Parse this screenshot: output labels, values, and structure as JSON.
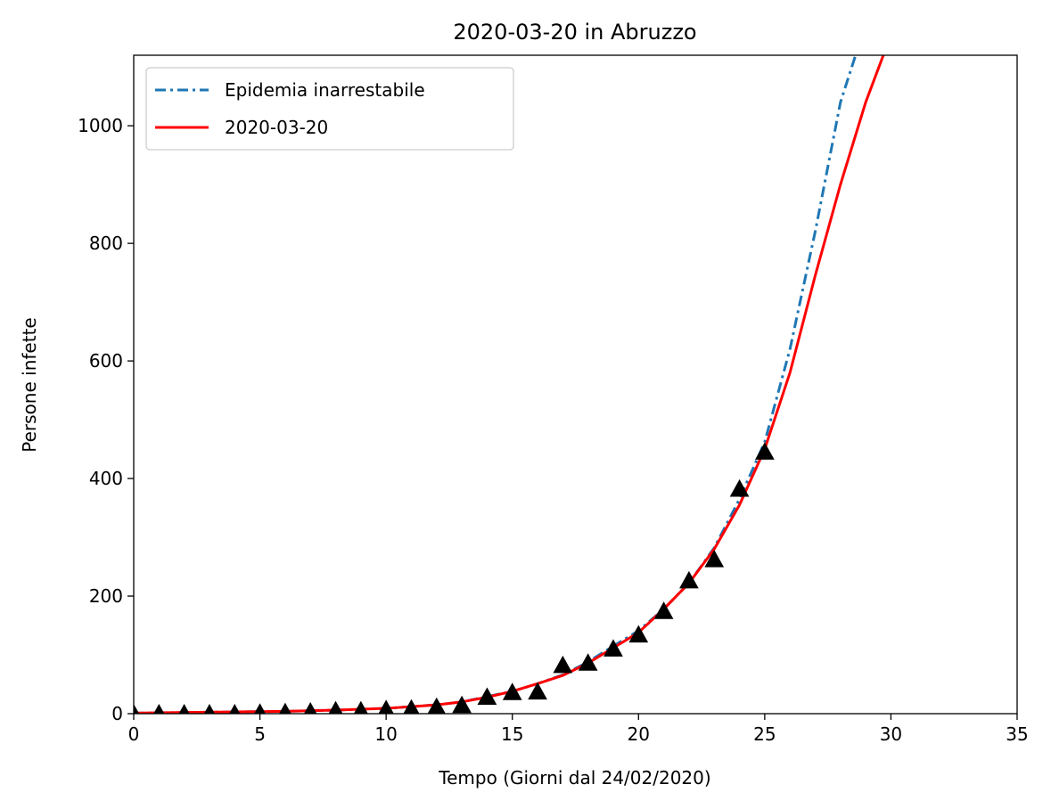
{
  "chart_data": {
    "type": "line",
    "title": "2020-03-20 in Abruzzo",
    "xlabel": "Tempo (Giorni dal 24/02/2020)",
    "ylabel": "Persone infette",
    "xlim": [
      0,
      35
    ],
    "ylim": [
      0,
      1120
    ],
    "xticks": [
      0,
      5,
      10,
      15,
      20,
      25,
      30,
      35
    ],
    "yticks": [
      0,
      200,
      400,
      600,
      800,
      1000
    ],
    "grid": false,
    "legend_position": "top-left",
    "series": [
      {
        "name": "Epidemia inarrestabile",
        "style": "dash-dot",
        "color": "#1f77b4",
        "x": [
          0,
          2,
          4,
          6,
          8,
          10,
          12,
          13,
          14,
          15,
          16,
          17,
          18,
          19,
          20,
          21,
          22,
          23,
          24,
          25,
          26,
          27,
          28,
          28.6
        ],
        "y": [
          1,
          2,
          3,
          4,
          6,
          9,
          15,
          20,
          29,
          38,
          51,
          66,
          88,
          115,
          141,
          178,
          222,
          282,
          365,
          462,
          620,
          820,
          1040,
          1120
        ]
      },
      {
        "name": "2020-03-20",
        "style": "solid",
        "color": "#ff0000",
        "x": [
          0,
          2,
          4,
          6,
          8,
          10,
          12,
          13,
          14,
          15,
          16,
          17,
          18,
          19,
          20,
          21,
          22,
          23,
          24,
          25,
          26,
          27,
          28,
          29,
          29.7
        ],
        "y": [
          1,
          2,
          3,
          4,
          6,
          9,
          15,
          20,
          28,
          38,
          51,
          65,
          86,
          112,
          138,
          178,
          222,
          280,
          355,
          450,
          580,
          745,
          900,
          1040,
          1120
        ]
      },
      {
        "name": "",
        "style": "markers",
        "marker": "triangle",
        "color": "#000000",
        "x": [
          0,
          1,
          2,
          3,
          4,
          5,
          6,
          7,
          8,
          9,
          10,
          11,
          12,
          13,
          14,
          15,
          16,
          17,
          18,
          19,
          20,
          21,
          22,
          23,
          24,
          25
        ],
        "y": [
          0,
          0,
          0,
          0,
          0,
          1,
          2,
          3,
          5,
          5,
          7,
          8,
          11,
          14,
          28,
          36,
          37,
          82,
          86,
          110,
          134,
          174,
          226,
          262,
          382,
          445
        ]
      }
    ]
  }
}
